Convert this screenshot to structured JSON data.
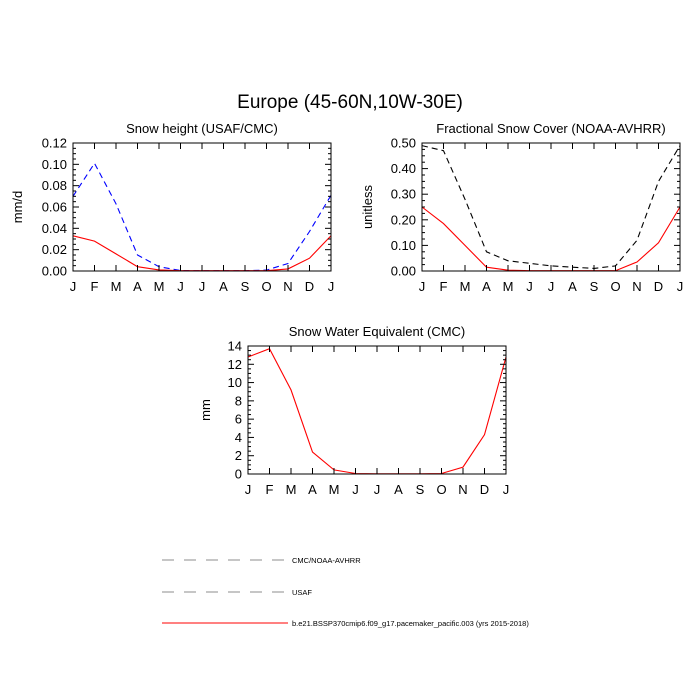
{
  "title": "Europe (45-60N,10W-30E)",
  "months": [
    "J",
    "F",
    "M",
    "A",
    "M",
    "J",
    "J",
    "A",
    "S",
    "O",
    "N",
    "D",
    "J"
  ],
  "colors": {
    "red": "#ff0000",
    "blue": "#0000ff",
    "black": "#000000",
    "gray": "#8c8c8c"
  },
  "chart_data": [
    {
      "id": "snow-height",
      "type": "line",
      "title": "Snow height (USAF/CMC)",
      "ylabel": "mm/d",
      "ylim": [
        0,
        0.12
      ],
      "yticks": [
        0,
        0.02,
        0.04,
        0.06,
        0.08,
        0.1,
        0.12
      ],
      "ytick_labels": [
        "0.00",
        "0.02",
        "0.04",
        "0.06",
        "0.08",
        "0.10",
        "0.12"
      ],
      "categories": [
        "J",
        "F",
        "M",
        "A",
        "M",
        "J",
        "J",
        "A",
        "S",
        "O",
        "N",
        "D",
        "J"
      ],
      "series": [
        {
          "name": "USAF",
          "style": "dashed",
          "color": "#0000ff",
          "values": [
            0.07,
            0.101,
            0.063,
            0.015,
            0.004,
            0.0005,
            0.0003,
            0.0003,
            0.0003,
            0.0008,
            0.007,
            0.037,
            0.071
          ]
        },
        {
          "name": "b.e21.BSSP370cmip6.f09_g17.pacemaker_pacific.003 (yrs 2015-2018)",
          "style": "solid",
          "color": "#ff0000",
          "values": [
            0.033,
            0.028,
            0.016,
            0.004,
            0.001,
            0.0003,
            0.0003,
            0.0003,
            0.0003,
            0.0003,
            0.002,
            0.012,
            0.033
          ]
        }
      ]
    },
    {
      "id": "fractional-snow-cover",
      "type": "line",
      "title": "Fractional Snow Cover (NOAA-AVHRR)",
      "ylabel": "unitless",
      "ylim": [
        0,
        0.5
      ],
      "yticks": [
        0,
        0.1,
        0.2,
        0.3,
        0.4,
        0.5
      ],
      "ytick_labels": [
        "0.00",
        "0.10",
        "0.20",
        "0.30",
        "0.40",
        "0.50"
      ],
      "categories": [
        "J",
        "F",
        "M",
        "A",
        "M",
        "J",
        "J",
        "A",
        "S",
        "O",
        "N",
        "D",
        "J"
      ],
      "series": [
        {
          "name": "CMC/NOAA-AVHRR",
          "style": "dashed",
          "color": "#000000",
          "values": [
            0.49,
            0.47,
            0.28,
            0.075,
            0.04,
            0.03,
            0.02,
            0.015,
            0.01,
            0.02,
            0.12,
            0.35,
            0.49
          ]
        },
        {
          "name": "b.e21.BSSP370cmip6.f09_g17.pacemaker_pacific.003 (yrs 2015-2018)",
          "style": "solid",
          "color": "#ff0000",
          "values": [
            0.25,
            0.185,
            0.1,
            0.015,
            0.003,
            0.001,
            0.001,
            0.001,
            0.001,
            0.001,
            0.035,
            0.11,
            0.25
          ]
        }
      ]
    },
    {
      "id": "snow-water-equivalent",
      "type": "line",
      "title": "Snow Water Equivalent (CMC)",
      "ylabel": "mm",
      "ylim": [
        0,
        14
      ],
      "yticks": [
        0,
        2,
        4,
        6,
        8,
        10,
        12,
        14
      ],
      "ytick_labels": [
        "0",
        "2",
        "4",
        "6",
        "8",
        "10",
        "12",
        "14"
      ],
      "categories": [
        "J",
        "F",
        "M",
        "A",
        "M",
        "J",
        "J",
        "A",
        "S",
        "O",
        "N",
        "D",
        "J"
      ],
      "series": [
        {
          "name": "CMC/NOAA-AVHRR",
          "style": "dashed",
          "color": "#000000",
          "values": [
            0,
            0,
            0,
            0,
            0,
            0,
            0,
            0,
            0,
            0,
            0,
            0,
            0
          ]
        },
        {
          "name": "b.e21.BSSP370cmip6.f09_g17.pacemaker_pacific.003 (yrs 2015-2018)",
          "style": "solid",
          "color": "#ff0000",
          "values": [
            12.8,
            13.7,
            9.2,
            2.4,
            0.45,
            0.05,
            0.02,
            0.02,
            0.02,
            0.05,
            0.75,
            4.3,
            12.8
          ]
        }
      ]
    }
  ],
  "legend": [
    {
      "label": "CMC/NOAA-AVHRR",
      "style": "dashed",
      "color": "#8c8c8c"
    },
    {
      "label": "USAF",
      "style": "dashed",
      "color": "#8c8c8c"
    },
    {
      "label": "b.e21.BSSP370cmip6.f09_g17.pacemaker_pacific.003 (yrs 2015-2018)",
      "style": "solid",
      "color": "#ff0000"
    }
  ]
}
